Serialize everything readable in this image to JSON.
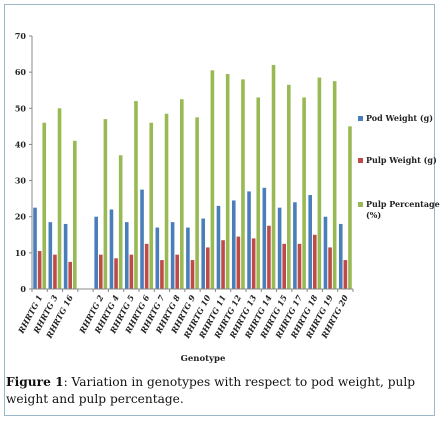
{
  "chart_data": {
    "type": "bar",
    "title": "",
    "xlabel": "Genotype",
    "ylabel": "",
    "ylim": [
      0,
      70
    ],
    "yticks": [
      0,
      10,
      20,
      30,
      40,
      50,
      60,
      70
    ],
    "grid": false,
    "legend_position": "right",
    "categories": [
      "RHRTG 1",
      "RHRTG 3",
      "RHRTG 16",
      "",
      "RHRTG 2",
      "RHRTG 4",
      "RHRTG 5",
      "RHRTG 6",
      "RHRTG 7",
      "RHRTG 8",
      "RHRTG 9",
      "RHRTG 10",
      "RHRTG 11",
      "RHRTG 12",
      "RHRTG 13",
      "RHRTG 14",
      "RHRTG 15",
      "RHRTG 17",
      "RHRTG 18",
      "RHRTG 19",
      "RHRTG 20"
    ],
    "series": [
      {
        "name": "Pod Weight (g)",
        "color": "#4a7ebb",
        "values": [
          22.5,
          18.5,
          18.0,
          null,
          20.0,
          22.0,
          18.5,
          27.5,
          17.0,
          18.5,
          17.0,
          19.5,
          23.0,
          24.5,
          27.0,
          28.0,
          22.5,
          24.0,
          26.0,
          20.0,
          18.0
        ]
      },
      {
        "name": "Pulp Weight (g)",
        "color": "#be4b48",
        "values": [
          10.5,
          9.5,
          7.5,
          null,
          9.5,
          8.5,
          9.5,
          12.5,
          8.0,
          9.5,
          8.0,
          11.5,
          13.5,
          14.5,
          14.0,
          17.5,
          12.5,
          12.5,
          15.0,
          11.5,
          8.0
        ]
      },
      {
        "name": "Pulp Percentage (%)",
        "color": "#98b954",
        "values": [
          46.0,
          50.0,
          41.0,
          null,
          47.0,
          37.0,
          52.0,
          46.0,
          48.5,
          52.5,
          47.5,
          60.5,
          59.5,
          58.0,
          53.0,
          62.0,
          56.5,
          53.0,
          58.5,
          57.5,
          45.0
        ]
      }
    ]
  },
  "caption": {
    "label": "Figure 1",
    "text": ": Variation in genotypes with respect to pod weight, pulp weight and pulp percentage."
  }
}
